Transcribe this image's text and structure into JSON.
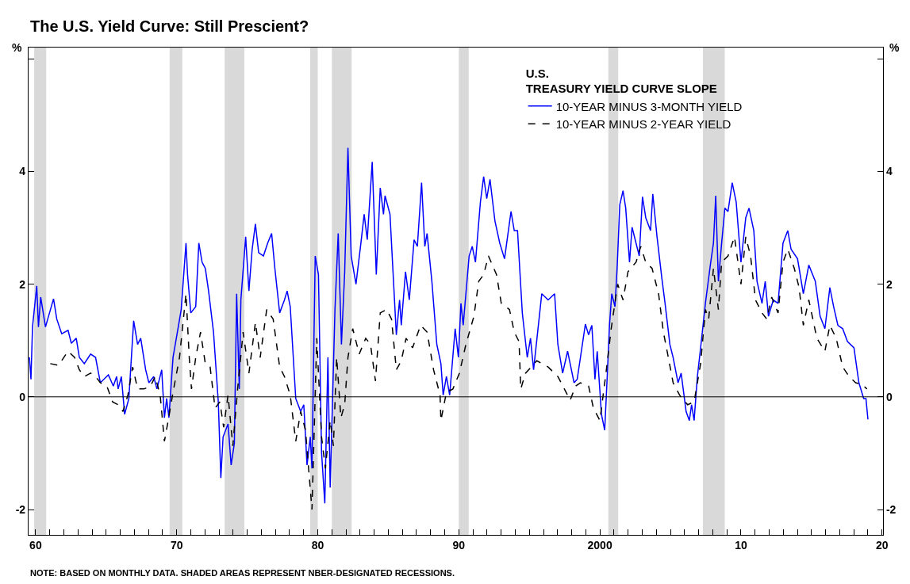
{
  "chart_data": {
    "type": "line",
    "title": "The U.S. Yield Curve: Still Prescient?",
    "ylabel": "%",
    "y2label": "%",
    "legend_title": "U.S.\nTREASURY YIELD CURVE SLOPE",
    "legend": "top right",
    "grid": false,
    "marker": "none",
    "annotations": [
      "NOTE: BASED ON MONTHLY DATA. SHADED AREAS REPRESENT NBER-DESIGNATED RECESSIONS."
    ],
    "xlim": [
      1959.5,
      2020.07
    ],
    "ylim": [
      -2.45,
      6.2
    ],
    "y2lim": [
      -2.45,
      6.2
    ],
    "xticks": [
      {
        "value": 1960,
        "label": "60"
      },
      {
        "value": 1961,
        "label": null
      },
      {
        "value": 1962,
        "label": null
      },
      {
        "value": 1963,
        "label": null
      },
      {
        "value": 1964,
        "label": null
      },
      {
        "value": 1965,
        "label": null
      },
      {
        "value": 1966,
        "label": null
      },
      {
        "value": 1967,
        "label": null
      },
      {
        "value": 1968,
        "label": null
      },
      {
        "value": 1969,
        "label": null
      },
      {
        "value": 1970,
        "label": "70"
      },
      {
        "value": 1971,
        "label": null
      },
      {
        "value": 1972,
        "label": null
      },
      {
        "value": 1973,
        "label": null
      },
      {
        "value": 1974,
        "label": null
      },
      {
        "value": 1975,
        "label": null
      },
      {
        "value": 1976,
        "label": null
      },
      {
        "value": 1977,
        "label": null
      },
      {
        "value": 1978,
        "label": null
      },
      {
        "value": 1979,
        "label": null
      },
      {
        "value": 1980,
        "label": "80"
      },
      {
        "value": 1981,
        "label": null
      },
      {
        "value": 1982,
        "label": null
      },
      {
        "value": 1983,
        "label": null
      },
      {
        "value": 1984,
        "label": null
      },
      {
        "value": 1985,
        "label": null
      },
      {
        "value": 1986,
        "label": null
      },
      {
        "value": 1987,
        "label": null
      },
      {
        "value": 1988,
        "label": null
      },
      {
        "value": 1989,
        "label": null
      },
      {
        "value": 1990,
        "label": "90"
      },
      {
        "value": 1991,
        "label": null
      },
      {
        "value": 1992,
        "label": null
      },
      {
        "value": 1993,
        "label": null
      },
      {
        "value": 1994,
        "label": null
      },
      {
        "value": 1995,
        "label": null
      },
      {
        "value": 1996,
        "label": null
      },
      {
        "value": 1997,
        "label": null
      },
      {
        "value": 1998,
        "label": null
      },
      {
        "value": 1999,
        "label": null
      },
      {
        "value": 2000,
        "label": "2000"
      },
      {
        "value": 2001,
        "label": null
      },
      {
        "value": 2002,
        "label": null
      },
      {
        "value": 2003,
        "label": null
      },
      {
        "value": 2004,
        "label": null
      },
      {
        "value": 2005,
        "label": null
      },
      {
        "value": 2006,
        "label": null
      },
      {
        "value": 2007,
        "label": null
      },
      {
        "value": 2008,
        "label": null
      },
      {
        "value": 2009,
        "label": null
      },
      {
        "value": 2010,
        "label": "10"
      },
      {
        "value": 2011,
        "label": null
      },
      {
        "value": 2012,
        "label": null
      },
      {
        "value": 2013,
        "label": null
      },
      {
        "value": 2014,
        "label": null
      },
      {
        "value": 2015,
        "label": null
      },
      {
        "value": 2016,
        "label": null
      },
      {
        "value": 2017,
        "label": null
      },
      {
        "value": 2018,
        "label": null
      },
      {
        "value": 2019,
        "label": null
      },
      {
        "value": 2020,
        "label": "20"
      }
    ],
    "yticks": [
      -2,
      0,
      2,
      4,
      {
        "value": 6,
        "label": null
      }
    ],
    "y2ticks": [
      -2,
      0,
      2,
      4,
      {
        "value": 6,
        "label": null
      }
    ],
    "ref_lines": [
      {
        "axis": "y",
        "value": 0,
        "color": "#000000"
      }
    ],
    "bands": [
      {
        "axis": "x",
        "from": 1959.9,
        "to": 1960.75,
        "color": "#d9d9d9"
      },
      {
        "axis": "x",
        "from": 1969.5,
        "to": 1970.4,
        "color": "#d9d9d9"
      },
      {
        "axis": "x",
        "from": 1973.4,
        "to": 1974.8,
        "color": "#d9d9d9"
      },
      {
        "axis": "x",
        "from": 1979.46,
        "to": 1980.0,
        "color": "#d9d9d9"
      },
      {
        "axis": "x",
        "from": 1981.0,
        "to": 1982.4,
        "color": "#d9d9d9"
      },
      {
        "axis": "x",
        "from": 1990.0,
        "to": 1990.7,
        "color": "#d9d9d9"
      },
      {
        "axis": "x",
        "from": 2000.6,
        "to": 2001.3,
        "color": "#d9d9d9"
      },
      {
        "axis": "x",
        "from": 2007.3,
        "to": 2008.85,
        "color": "#d9d9d9"
      }
    ],
    "series": [
      {
        "name": "10-YEAR MINUS 3-MONTH YIELD",
        "color": "#0000ff",
        "line_style": "solid",
        "x": [
          1959.56,
          1959.67,
          1959.78,
          1960.08,
          1960.2,
          1960.36,
          1960.7,
          1961.27,
          1961.5,
          1961.85,
          1962.3,
          1962.53,
          1962.88,
          1963.1,
          1963.45,
          1963.9,
          1964.25,
          1964.59,
          1965.16,
          1965.51,
          1965.74,
          1965.85,
          1966.08,
          1966.31,
          1966.61,
          1966.95,
          1967.23,
          1967.45,
          1967.8,
          1968.03,
          1968.37,
          1968.6,
          1968.94,
          1969.13,
          1969.29,
          1969.45,
          1969.74,
          1970.09,
          1970.32,
          1970.66,
          1970.77,
          1971.0,
          1971.35,
          1971.57,
          1971.8,
          1972.03,
          1972.26,
          1972.61,
          1972.95,
          1973.13,
          1973.29,
          1973.64,
          1973.86,
          1974.09,
          1974.25,
          1974.44,
          1974.55,
          1974.89,
          1975.12,
          1975.35,
          1975.58,
          1975.81,
          1976.15,
          1976.45,
          1976.73,
          1976.96,
          1977.3,
          1977.64,
          1977.83,
          1978.05,
          1978.44,
          1978.79,
          1979.01,
          1979.24,
          1979.47,
          1979.59,
          1979.82,
          1980.05,
          1980.27,
          1980.5,
          1980.72,
          1980.88,
          1981.22,
          1981.45,
          1981.68,
          1981.91,
          1982.14,
          1982.37,
          1982.71,
          1983.06,
          1983.29,
          1983.51,
          1983.86,
          1984.15,
          1984.43,
          1984.66,
          1984.77,
          1985.12,
          1985.57,
          1985.8,
          1985.92,
          1986.22,
          1986.49,
          1986.83,
          1987.06,
          1987.36,
          1987.59,
          1987.75,
          1988.09,
          1988.44,
          1988.73,
          1988.89,
          1989.12,
          1989.35,
          1989.74,
          1989.97,
          1990.15,
          1990.31,
          1990.73,
          1990.95,
          1991.18,
          1991.53,
          1991.76,
          1991.98,
          1992.21,
          1992.56,
          1992.9,
          1993.24,
          1993.7,
          1993.93,
          1994.16,
          1994.5,
          1994.85,
          1995.08,
          1995.3,
          1995.88,
          1996.33,
          1996.79,
          1997.02,
          1997.36,
          1997.71,
          1998.17,
          1998.39,
          1998.97,
          1999.2,
          1999.43,
          1999.65,
          1999.81,
          2000.11,
          2000.34,
          2000.5,
          2000.68,
          2000.84,
          2001.07,
          2001.23,
          2001.41,
          2001.64,
          2001.83,
          2002.1,
          2002.28,
          2002.56,
          2002.79,
          2003.02,
          2003.25,
          2003.59,
          2003.75,
          2004.05,
          2004.39,
          2004.62,
          2004.96,
          2005.19,
          2005.54,
          2005.76,
          2006.11,
          2006.34,
          2006.5,
          2006.68,
          2006.91,
          2007.14,
          2007.48,
          2007.83,
          2008.05,
          2008.21,
          2008.4,
          2008.63,
          2008.86,
          2009.08,
          2009.38,
          2009.66,
          2010.0,
          2010.34,
          2010.57,
          2010.91,
          2011.14,
          2011.49,
          2011.72,
          2011.95,
          2012.29,
          2012.63,
          2012.98,
          2013.32,
          2013.55,
          2014.01,
          2014.42,
          2014.81,
          2015.27,
          2015.61,
          2015.95,
          2016.3,
          2016.57,
          2016.87,
          2017.21,
          2017.55,
          2018.01,
          2018.36,
          2018.7,
          2018.86,
          2019.0
        ],
        "values": [
          0.7,
          0.31,
          1.24,
          1.97,
          1.24,
          1.77,
          1.24,
          1.74,
          1.38,
          1.12,
          1.18,
          0.95,
          1.04,
          0.7,
          0.59,
          0.76,
          0.7,
          0.25,
          0.39,
          0.19,
          0.36,
          0.14,
          0.36,
          -0.31,
          -0.03,
          1.35,
          0.93,
          1.04,
          0.48,
          0.25,
          0.36,
          0.14,
          0.48,
          -0.37,
          -0.03,
          -0.37,
          0.7,
          1.21,
          1.55,
          2.73,
          2.17,
          1.49,
          1.6,
          2.73,
          2.39,
          2.28,
          1.88,
          1.15,
          -0.09,
          -1.44,
          -0.71,
          -0.48,
          -1.21,
          -0.82,
          1.83,
          0.14,
          1.72,
          2.84,
          1.88,
          2.62,
          3.07,
          2.56,
          2.5,
          2.73,
          2.9,
          2.28,
          1.49,
          1.72,
          1.88,
          1.6,
          -0.03,
          -0.26,
          -0.14,
          -1.21,
          -0.71,
          -1.27,
          2.5,
          2.17,
          -0.99,
          -1.89,
          0.7,
          -1.61,
          1.55,
          2.9,
          0.93,
          2.22,
          4.42,
          2.5,
          2.0,
          2.73,
          3.24,
          2.79,
          4.17,
          2.17,
          3.71,
          3.24,
          3.57,
          3.24,
          1.1,
          1.72,
          1.27,
          2.22,
          1.72,
          2.79,
          2.67,
          3.8,
          2.67,
          2.9,
          2.05,
          0.93,
          0.59,
          0.03,
          0.36,
          0.03,
          1.21,
          0.7,
          1.66,
          1.27,
          2.5,
          2.67,
          2.39,
          3.46,
          3.91,
          3.52,
          3.86,
          3.12,
          2.73,
          2.45,
          3.29,
          2.95,
          2.95,
          1.49,
          0.7,
          1.04,
          0.48,
          1.83,
          1.72,
          1.83,
          0.93,
          0.42,
          0.81,
          0.25,
          0.31,
          1.29,
          1.1,
          1.27,
          0.31,
          0.81,
          -0.31,
          -0.59,
          0.25,
          1.27,
          1.83,
          1.6,
          2.34,
          3.41,
          3.66,
          3.35,
          2.39,
          3.01,
          2.73,
          2.5,
          3.55,
          3.18,
          2.95,
          3.6,
          2.84,
          2.11,
          1.66,
          0.93,
          0.7,
          0.25,
          0.42,
          -0.26,
          -0.42,
          -0.14,
          -0.42,
          0.36,
          0.87,
          1.66,
          2.34,
          2.73,
          3.57,
          2.05,
          2.73,
          3.35,
          3.29,
          3.8,
          3.46,
          2.39,
          3.18,
          3.35,
          2.95,
          2.05,
          1.66,
          2.05,
          1.43,
          1.72,
          1.66,
          2.73,
          2.95,
          2.62,
          2.45,
          1.83,
          2.34,
          2.05,
          1.43,
          1.21,
          1.94,
          1.6,
          1.27,
          1.21,
          0.98,
          0.87,
          0.25,
          -0.03,
          -0.03,
          -0.4
        ]
      },
      {
        "name": "10-YEAR MINUS 2-YEAR YIELD",
        "color": "#000000",
        "line_style": "dashed",
        "axis": "y2",
        "x": [
          1961.04,
          1961.62,
          1962.3,
          1962.76,
          1963.1,
          1963.45,
          1963.9,
          1964.25,
          1964.59,
          1965.05,
          1965.46,
          1965.85,
          1966.19,
          1966.54,
          1966.88,
          1967.23,
          1967.68,
          1968.14,
          1968.48,
          1968.83,
          1969.13,
          1969.4,
          1969.74,
          1970.2,
          1970.43,
          1970.66,
          1970.89,
          1971.05,
          1971.35,
          1971.69,
          1972.03,
          1972.37,
          1972.72,
          1973.06,
          1973.33,
          1973.64,
          1973.98,
          1974.32,
          1974.71,
          1975.12,
          1975.58,
          1975.92,
          1976.38,
          1976.84,
          1977.3,
          1977.64,
          1978.05,
          1978.44,
          1978.79,
          1979.13,
          1979.59,
          1979.93,
          1980.27,
          1980.54,
          1980.88,
          1981.11,
          1981.34,
          1981.64,
          1981.91,
          1982.14,
          1982.48,
          1982.94,
          1983.4,
          1983.74,
          1984.09,
          1984.43,
          1984.89,
          1985.23,
          1985.57,
          1985.92,
          1986.26,
          1986.72,
          1987.29,
          1987.75,
          1988.21,
          1988.67,
          1988.73,
          1989.12,
          1989.58,
          1990.04,
          1990.5,
          1991.07,
          1991.41,
          1991.76,
          1992.1,
          1992.67,
          1993.01,
          1993.59,
          1993.93,
          1994.27,
          1994.39,
          1994.73,
          1995.53,
          1996.33,
          1997.02,
          1997.48,
          1997.89,
          1998.28,
          1998.62,
          1999.2,
          1999.54,
          2000.0,
          2000.46,
          2000.8,
          2001.26,
          2001.64,
          2001.99,
          2002.56,
          2002.9,
          2003.25,
          2003.7,
          2004.16,
          2004.5,
          2004.85,
          2005.19,
          2005.65,
          2006.22,
          2006.68,
          2007.14,
          2007.48,
          2007.71,
          2008.05,
          2008.4,
          2008.63,
          2009.08,
          2009.54,
          2010.0,
          2010.34,
          2010.68,
          2011.03,
          2011.49,
          2011.83,
          2012.18,
          2012.63,
          2012.98,
          2013.32,
          2013.78,
          2014.12,
          2014.42,
          2014.81,
          2015.38,
          2015.95,
          2016.3,
          2016.75,
          2017.21,
          2017.67,
          2018.13,
          2018.59,
          2018.93
        ],
        "values": [
          0.59,
          0.56,
          0.81,
          0.7,
          0.48,
          0.36,
          0.42,
          0.36,
          0.25,
          0.19,
          -0.09,
          -0.14,
          -0.26,
          0.03,
          0.53,
          0.14,
          0.14,
          0.19,
          0.36,
          0.03,
          -0.79,
          -0.42,
          0.08,
          0.7,
          1.27,
          1.83,
          0.7,
          0.14,
          0.7,
          1.15,
          0.59,
          0.53,
          -0.2,
          -0.09,
          -0.54,
          0.03,
          -0.87,
          0.14,
          1.15,
          0.42,
          1.32,
          0.7,
          1.55,
          1.38,
          0.53,
          0.36,
          0.03,
          -0.79,
          -0.26,
          -0.59,
          -2.0,
          1.04,
          -0.71,
          -1.27,
          -0.42,
          -0.87,
          0.7,
          -0.37,
          -0.14,
          0.7,
          1.21,
          0.76,
          1.04,
          0.93,
          0.28,
          1.49,
          1.55,
          1.38,
          0.48,
          0.64,
          1.04,
          0.87,
          1.27,
          1.15,
          0.48,
          0.03,
          -0.42,
          0.08,
          0.14,
          0.42,
          0.93,
          1.43,
          2.05,
          2.17,
          2.5,
          2.17,
          1.66,
          1.55,
          1.15,
          0.98,
          0.14,
          0.42,
          0.64,
          0.53,
          0.36,
          0.14,
          -0.06,
          0.19,
          0.25,
          0.19,
          -0.2,
          -0.42,
          0.48,
          1.21,
          2.0,
          1.72,
          2.22,
          2.39,
          2.67,
          2.39,
          2.28,
          1.83,
          1.15,
          0.7,
          0.25,
          0.03,
          -0.14,
          -0.09,
          0.59,
          1.55,
          1.38,
          2.28,
          1.55,
          2.39,
          2.5,
          2.84,
          2.0,
          2.84,
          2.5,
          1.72,
          1.49,
          1.38,
          1.77,
          1.49,
          2.39,
          2.62,
          2.28,
          1.94,
          1.27,
          1.72,
          1.04,
          0.81,
          1.27,
          1.04,
          0.53,
          0.36,
          0.25,
          0.22,
          0.14
        ]
      }
    ]
  }
}
